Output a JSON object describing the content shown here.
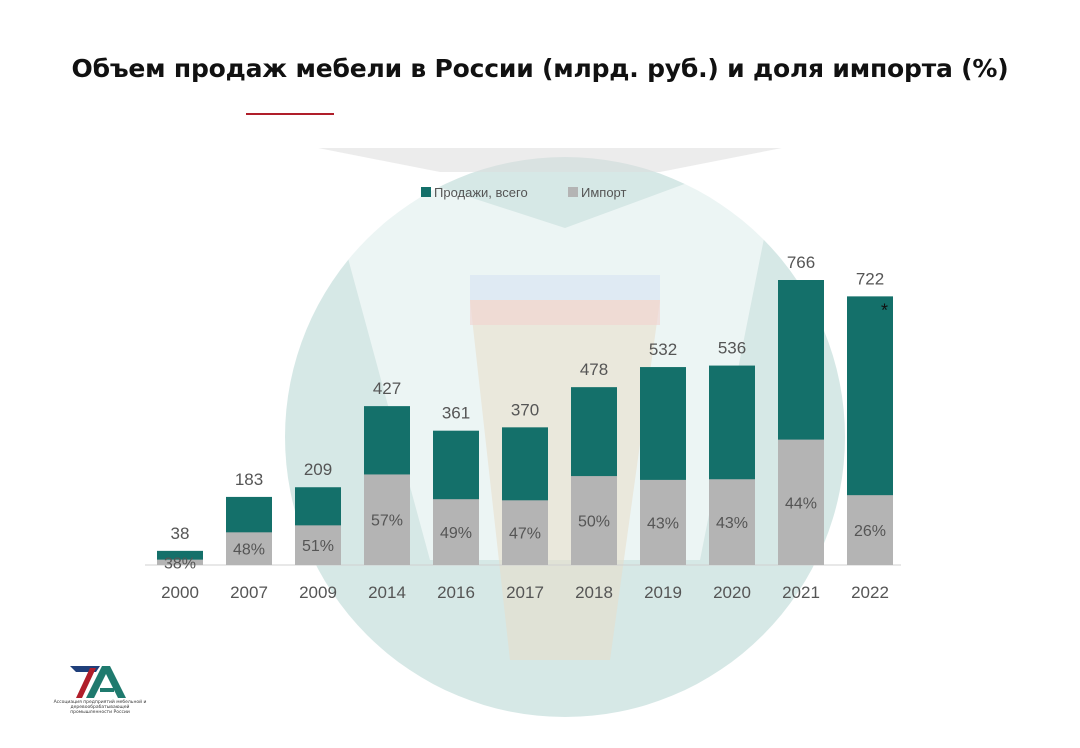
{
  "title": "Объем продаж мебели в России (млрд. руб.) и доля импорта (%)",
  "colors": {
    "sales": "#14706a",
    "import": "#b4b4b4",
    "axis": "#d0d0d0",
    "label": "#555555",
    "title_rule": "#b01e2a",
    "circle": "#cfe4e2"
  },
  "chart_data": {
    "type": "bar",
    "categories": [
      "2000",
      "2007",
      "2009",
      "2014",
      "2016",
      "2017",
      "2018",
      "2019",
      "2020",
      "2021",
      "2022"
    ],
    "series": [
      {
        "name": "Продажи, всего",
        "values": [
          38,
          183,
          209,
          427,
          361,
          370,
          478,
          532,
          536,
          766,
          722
        ]
      },
      {
        "name": "Импорт",
        "share_percent": [
          38,
          48,
          51,
          57,
          49,
          47,
          50,
          43,
          43,
          44,
          26
        ],
        "share_labels": [
          "38%",
          "48%",
          "51%",
          "57%",
          "49%",
          "47%",
          "50%",
          "43%",
          "43%",
          "44%",
          "26%"
        ]
      }
    ],
    "ylim": [
      0,
      766
    ],
    "legend": "top-center",
    "grid": false,
    "annotations": [
      {
        "category": "2022",
        "text": "*"
      }
    ]
  },
  "logo": {
    "mark": "ЛА",
    "caption": "Ассоциация предприятий мебельной и деревообрабатывающей промышленности России"
  }
}
